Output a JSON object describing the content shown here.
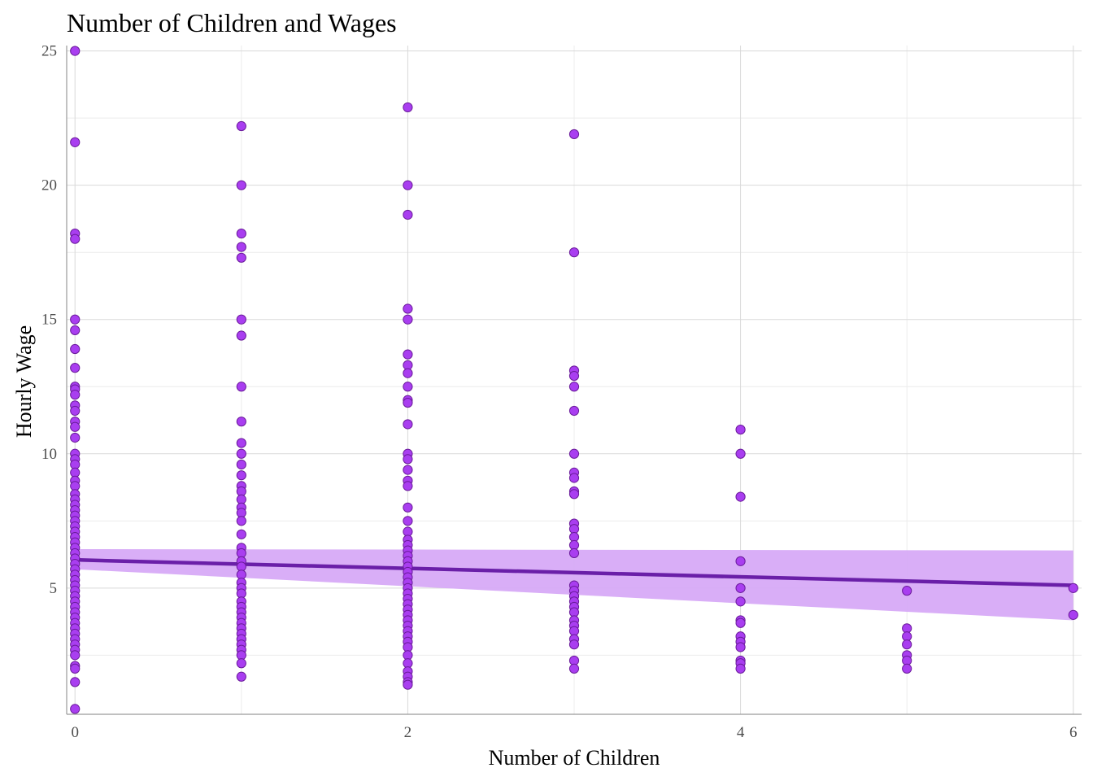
{
  "chart_data": {
    "type": "scatter",
    "title": "Number of Children and Wages",
    "xlabel": "Number of Children",
    "ylabel": "Hourly Wage",
    "xlim": [
      -0.05,
      6.05
    ],
    "ylim": [
      0.3,
      25.2
    ],
    "x_ticks": [
      0,
      2,
      4,
      6
    ],
    "y_ticks": [
      5,
      10,
      15,
      20,
      25
    ],
    "x_tick_labels": [
      "0",
      "2",
      "4",
      "6"
    ],
    "y_tick_labels": [
      "5",
      "10",
      "15",
      "20",
      "25"
    ],
    "grid": true,
    "legend": "none",
    "colors": {
      "point_fill": "#a93ef0",
      "point_stroke": "#6a1b9a",
      "trend_line": "#6a1fa8",
      "confidence_band": "#d7aaf7"
    },
    "points": {
      "x0": [
        25.0,
        21.6,
        18.2,
        18.0,
        15.0,
        14.6,
        13.9,
        13.2,
        12.5,
        12.4,
        12.2,
        11.8,
        11.6,
        11.2,
        11.0,
        10.6,
        10.0,
        9.8,
        9.6,
        9.3,
        9.0,
        8.8,
        8.5,
        8.3,
        8.1,
        7.9,
        7.7,
        7.5,
        7.3,
        7.1,
        6.9,
        6.7,
        6.5,
        6.3,
        6.1,
        5.9,
        5.7,
        5.5,
        5.3,
        5.1,
        4.9,
        4.7,
        4.5,
        4.3,
        4.1,
        3.9,
        3.7,
        3.5,
        3.3,
        3.1,
        2.9,
        2.7,
        2.5,
        2.1,
        2.0,
        1.5,
        0.5
      ],
      "x1": [
        22.2,
        20.0,
        18.2,
        17.7,
        17.3,
        15.0,
        14.4,
        12.5,
        11.2,
        10.4,
        10.0,
        9.6,
        9.2,
        8.8,
        8.6,
        8.3,
        8.0,
        7.8,
        7.5,
        7.0,
        6.5,
        6.3,
        6.0,
        5.8,
        5.5,
        5.2,
        5.0,
        4.8,
        4.5,
        4.3,
        4.1,
        3.9,
        3.7,
        3.5,
        3.3,
        3.1,
        2.9,
        2.7,
        2.5,
        2.2,
        1.7
      ],
      "x2": [
        22.9,
        20.0,
        18.9,
        15.4,
        15.0,
        13.7,
        13.3,
        13.0,
        12.5,
        12.0,
        11.9,
        11.1,
        10.0,
        9.8,
        9.4,
        9.0,
        8.8,
        8.0,
        7.5,
        7.1,
        6.8,
        6.6,
        6.4,
        6.2,
        6.0,
        5.8,
        5.6,
        5.4,
        5.2,
        5.0,
        4.8,
        4.6,
        4.4,
        4.2,
        4.0,
        3.8,
        3.6,
        3.4,
        3.2,
        3.0,
        2.8,
        2.5,
        2.2,
        1.9,
        1.7,
        1.5,
        1.4
      ],
      "x3": [
        21.9,
        17.5,
        13.1,
        12.9,
        12.5,
        11.6,
        10.0,
        9.3,
        9.1,
        8.6,
        8.5,
        7.4,
        7.2,
        6.9,
        6.6,
        6.3,
        5.1,
        4.9,
        4.7,
        4.5,
        4.3,
        4.1,
        3.8,
        3.6,
        3.4,
        3.1,
        2.9,
        2.3,
        2.0
      ],
      "x4": [
        10.9,
        10.0,
        8.4,
        6.0,
        5.0,
        4.5,
        3.8,
        3.7,
        3.2,
        3.0,
        2.8,
        2.3,
        2.2,
        2.0
      ],
      "x5": [
        4.9,
        3.5,
        3.2,
        2.9,
        2.5,
        2.3,
        2.0
      ],
      "x6": [
        5.0,
        4.0
      ]
    },
    "trend": {
      "x": [
        0,
        6
      ],
      "y": [
        6.05,
        5.1
      ]
    },
    "band": {
      "x": [
        0,
        6
      ],
      "upper": [
        6.45,
        6.4
      ],
      "lower": [
        5.7,
        3.8
      ]
    }
  }
}
